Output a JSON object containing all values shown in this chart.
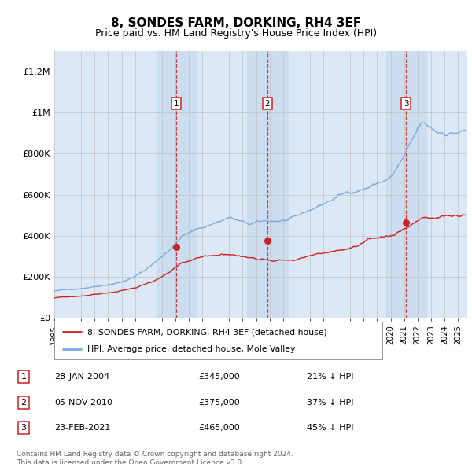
{
  "title": "8, SONDES FARM, DORKING, RH4 3EF",
  "subtitle": "Price paid vs. HM Land Registry's House Price Index (HPI)",
  "title_fontsize": 11,
  "subtitle_fontsize": 9,
  "ylabel_ticks": [
    "£0",
    "£200K",
    "£400K",
    "£600K",
    "£800K",
    "£1M",
    "£1.2M"
  ],
  "ytick_values": [
    0,
    200000,
    400000,
    600000,
    800000,
    1000000,
    1200000
  ],
  "ylim": [
    0,
    1300000
  ],
  "xlim_start": 1995.0,
  "xlim_end": 2025.7,
  "bg_color": "#dce8f5",
  "plot_bg_color": "#ffffff",
  "hpi_color": "#7aaadd",
  "price_color": "#cc2222",
  "transaction1_x": 2004.08,
  "transaction1_price": 345000,
  "transaction1_pct": "21% ↓ HPI",
  "transaction1_date": "28-JAN-2004",
  "transaction2_x": 2010.84,
  "transaction2_price": 375000,
  "transaction2_pct": "37% ↓ HPI",
  "transaction2_date": "05-NOV-2010",
  "transaction3_x": 2021.15,
  "transaction3_price": 465000,
  "transaction3_pct": "45% ↓ HPI",
  "transaction3_date": "23-FEB-2021",
  "footer_text": "Contains HM Land Registry data © Crown copyright and database right 2024.\nThis data is licensed under the Open Government Licence v3.0.",
  "legend_label_price": "8, SONDES FARM, DORKING, RH4 3EF (detached house)",
  "legend_label_hpi": "HPI: Average price, detached house, Mole Valley",
  "shade_color": "#ccddf0",
  "band_half": 1.5
}
